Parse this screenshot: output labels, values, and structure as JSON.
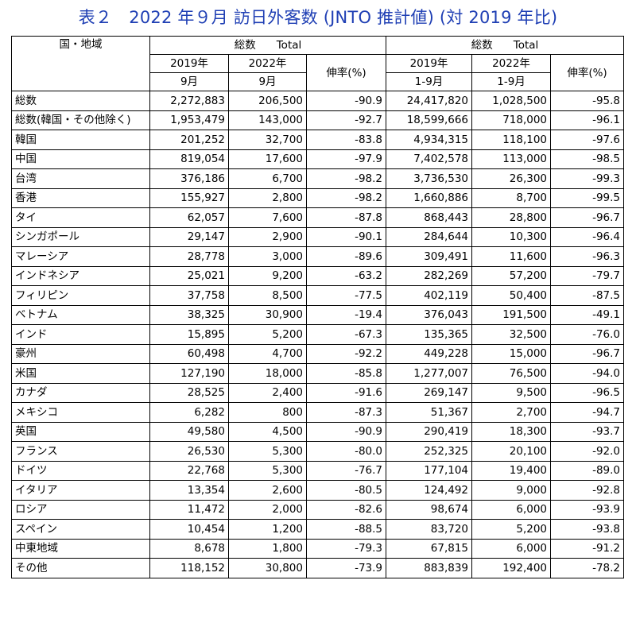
{
  "title": "表２　2022 年９月 訪日外客数 (JNTO 推計値) (対 2019 年比)",
  "header": {
    "region_label": "国・地域",
    "group_label_jp": "総数",
    "group_label_en": "Total",
    "col_2019": "2019年",
    "col_2022": "2022年",
    "month_sep": "9月",
    "period_jan_sep": "1-9月",
    "rate_label": "伸率(%)"
  },
  "rows": [
    {
      "region": "総数",
      "sep2019": "2,272,883",
      "sep2022": "206,500",
      "sep_rate": "-90.9",
      "ytd2019": "24,417,820",
      "ytd2022": "1,028,500",
      "ytd_rate": "-95.8"
    },
    {
      "region": "総数(韓国・その他除く)",
      "sep2019": "1,953,479",
      "sep2022": "143,000",
      "sep_rate": "-92.7",
      "ytd2019": "18,599,666",
      "ytd2022": "718,000",
      "ytd_rate": "-96.1"
    },
    {
      "region": "韓国",
      "sep2019": "201,252",
      "sep2022": "32,700",
      "sep_rate": "-83.8",
      "ytd2019": "4,934,315",
      "ytd2022": "118,100",
      "ytd_rate": "-97.6"
    },
    {
      "region": "中国",
      "sep2019": "819,054",
      "sep2022": "17,600",
      "sep_rate": "-97.9",
      "ytd2019": "7,402,578",
      "ytd2022": "113,000",
      "ytd_rate": "-98.5"
    },
    {
      "region": "台湾",
      "sep2019": "376,186",
      "sep2022": "6,700",
      "sep_rate": "-98.2",
      "ytd2019": "3,736,530",
      "ytd2022": "26,300",
      "ytd_rate": "-99.3"
    },
    {
      "region": "香港",
      "sep2019": "155,927",
      "sep2022": "2,800",
      "sep_rate": "-98.2",
      "ytd2019": "1,660,886",
      "ytd2022": "8,700",
      "ytd_rate": "-99.5"
    },
    {
      "region": "タイ",
      "sep2019": "62,057",
      "sep2022": "7,600",
      "sep_rate": "-87.8",
      "ytd2019": "868,443",
      "ytd2022": "28,800",
      "ytd_rate": "-96.7"
    },
    {
      "region": "シンガポール",
      "sep2019": "29,147",
      "sep2022": "2,900",
      "sep_rate": "-90.1",
      "ytd2019": "284,644",
      "ytd2022": "10,300",
      "ytd_rate": "-96.4"
    },
    {
      "region": "マレーシア",
      "sep2019": "28,778",
      "sep2022": "3,000",
      "sep_rate": "-89.6",
      "ytd2019": "309,491",
      "ytd2022": "11,600",
      "ytd_rate": "-96.3"
    },
    {
      "region": "インドネシア",
      "sep2019": "25,021",
      "sep2022": "9,200",
      "sep_rate": "-63.2",
      "ytd2019": "282,269",
      "ytd2022": "57,200",
      "ytd_rate": "-79.7"
    },
    {
      "region": "フィリピン",
      "sep2019": "37,758",
      "sep2022": "8,500",
      "sep_rate": "-77.5",
      "ytd2019": "402,119",
      "ytd2022": "50,400",
      "ytd_rate": "-87.5"
    },
    {
      "region": "ベトナム",
      "sep2019": "38,325",
      "sep2022": "30,900",
      "sep_rate": "-19.4",
      "ytd2019": "376,043",
      "ytd2022": "191,500",
      "ytd_rate": "-49.1"
    },
    {
      "region": "インド",
      "sep2019": "15,895",
      "sep2022": "5,200",
      "sep_rate": "-67.3",
      "ytd2019": "135,365",
      "ytd2022": "32,500",
      "ytd_rate": "-76.0"
    },
    {
      "region": "豪州",
      "sep2019": "60,498",
      "sep2022": "4,700",
      "sep_rate": "-92.2",
      "ytd2019": "449,228",
      "ytd2022": "15,000",
      "ytd_rate": "-96.7"
    },
    {
      "region": "米国",
      "sep2019": "127,190",
      "sep2022": "18,000",
      "sep_rate": "-85.8",
      "ytd2019": "1,277,007",
      "ytd2022": "76,500",
      "ytd_rate": "-94.0"
    },
    {
      "region": "カナダ",
      "sep2019": "28,525",
      "sep2022": "2,400",
      "sep_rate": "-91.6",
      "ytd2019": "269,147",
      "ytd2022": "9,500",
      "ytd_rate": "-96.5"
    },
    {
      "region": "メキシコ",
      "sep2019": "6,282",
      "sep2022": "800",
      "sep_rate": "-87.3",
      "ytd2019": "51,367",
      "ytd2022": "2,700",
      "ytd_rate": "-94.7"
    },
    {
      "region": "英国",
      "sep2019": "49,580",
      "sep2022": "4,500",
      "sep_rate": "-90.9",
      "ytd2019": "290,419",
      "ytd2022": "18,300",
      "ytd_rate": "-93.7"
    },
    {
      "region": "フランス",
      "sep2019": "26,530",
      "sep2022": "5,300",
      "sep_rate": "-80.0",
      "ytd2019": "252,325",
      "ytd2022": "20,100",
      "ytd_rate": "-92.0"
    },
    {
      "region": "ドイツ",
      "sep2019": "22,768",
      "sep2022": "5,300",
      "sep_rate": "-76.7",
      "ytd2019": "177,104",
      "ytd2022": "19,400",
      "ytd_rate": "-89.0"
    },
    {
      "region": "イタリア",
      "sep2019": "13,354",
      "sep2022": "2,600",
      "sep_rate": "-80.5",
      "ytd2019": "124,492",
      "ytd2022": "9,000",
      "ytd_rate": "-92.8"
    },
    {
      "region": "ロシア",
      "sep2019": "11,472",
      "sep2022": "2,000",
      "sep_rate": "-82.6",
      "ytd2019": "98,674",
      "ytd2022": "6,000",
      "ytd_rate": "-93.9"
    },
    {
      "region": "スペイン",
      "sep2019": "10,454",
      "sep2022": "1,200",
      "sep_rate": "-88.5",
      "ytd2019": "83,720",
      "ytd2022": "5,200",
      "ytd_rate": "-93.8"
    },
    {
      "region": "中東地域",
      "sep2019": "8,678",
      "sep2022": "1,800",
      "sep_rate": "-79.3",
      "ytd2019": "67,815",
      "ytd2022": "6,000",
      "ytd_rate": "-91.2"
    },
    {
      "region": "その他",
      "sep2019": "118,152",
      "sep2022": "30,800",
      "sep_rate": "-73.9",
      "ytd2019": "883,839",
      "ytd2022": "192,400",
      "ytd_rate": "-78.2"
    }
  ]
}
